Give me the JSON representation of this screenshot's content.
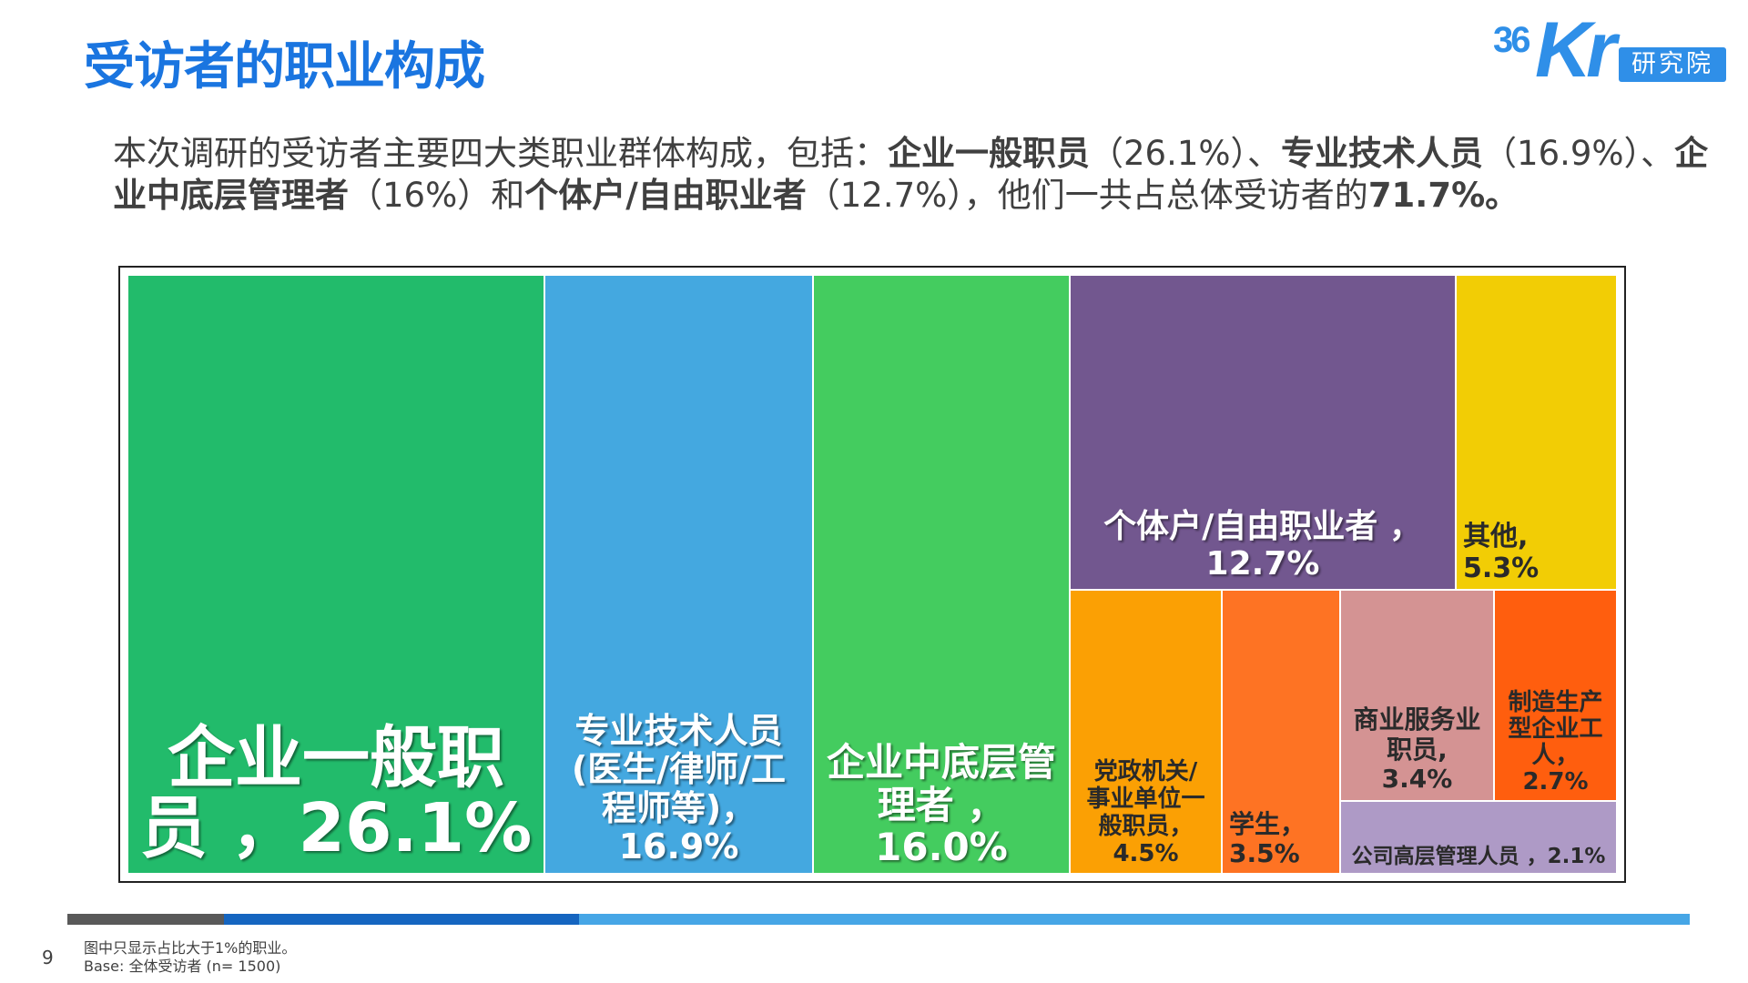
{
  "page": {
    "title": "受访者的职业构成",
    "logo": {
      "number": "36",
      "letters": "Kr",
      "lab": "研究院"
    },
    "intro": {
      "t1": "本次调研的受访者主要四大类职业群体构成，包括：",
      "b1": "企业一般职员",
      "t2": "（26.1%）、",
      "b2": "专业技术人员",
      "t3": "（16.9%）、",
      "b3": "企业中底层管理者",
      "t4": "（16%）和",
      "b4": "个体户/自由职业者",
      "t5": "（12.7%），他们一共占总体受访者的",
      "b5": "71.7%。"
    },
    "page_number": "9",
    "footnote_1": "图中只显示占比大于1%的职业。",
    "footnote_2": "Base: 全体受访者 (n= 1500)"
  },
  "chart_data": {
    "type": "treemap",
    "unit": "%",
    "items": [
      {
        "name": "企业一般职员",
        "label": "企业一般职员，26.1%",
        "value": 26.1,
        "color": "#22bb6b"
      },
      {
        "name": "专业技术人员",
        "label": "专业技术人员(医生/律师/工程师等)，16.9%",
        "value": 16.9,
        "color": "#44a8e0"
      },
      {
        "name": "企业中底层管理者",
        "label": "企业中底层管理者，16.0%",
        "value": 16.0,
        "color": "#44cc5f"
      },
      {
        "name": "个体户/自由职业者",
        "label": "个体户/自由职业者，12.7%",
        "value": 12.7,
        "color": "#72578f"
      },
      {
        "name": "其他",
        "label": "其他, 5.3%",
        "value": 5.3,
        "color": "#f2cd05"
      },
      {
        "name": "党政机关/事业单位一般职员",
        "label": "党政机关/事业单位一般职员，4.5%",
        "value": 4.5,
        "color": "#fba004"
      },
      {
        "name": "学生",
        "label": "学生，3.5%",
        "value": 3.5,
        "color": "#fe7323"
      },
      {
        "name": "商业服务业职员",
        "label": "商业服务业职员, 3.4%",
        "value": 3.4,
        "color": "#d49393"
      },
      {
        "name": "制造生产型企业工人",
        "label": "制造生产型企业工人，2.7%",
        "value": 2.7,
        "color": "#ff5e0e"
      },
      {
        "name": "公司高层管理人员",
        "label": "公司高层管理人员，2.1%",
        "value": 2.1,
        "color": "#ae9ac6"
      }
    ]
  }
}
